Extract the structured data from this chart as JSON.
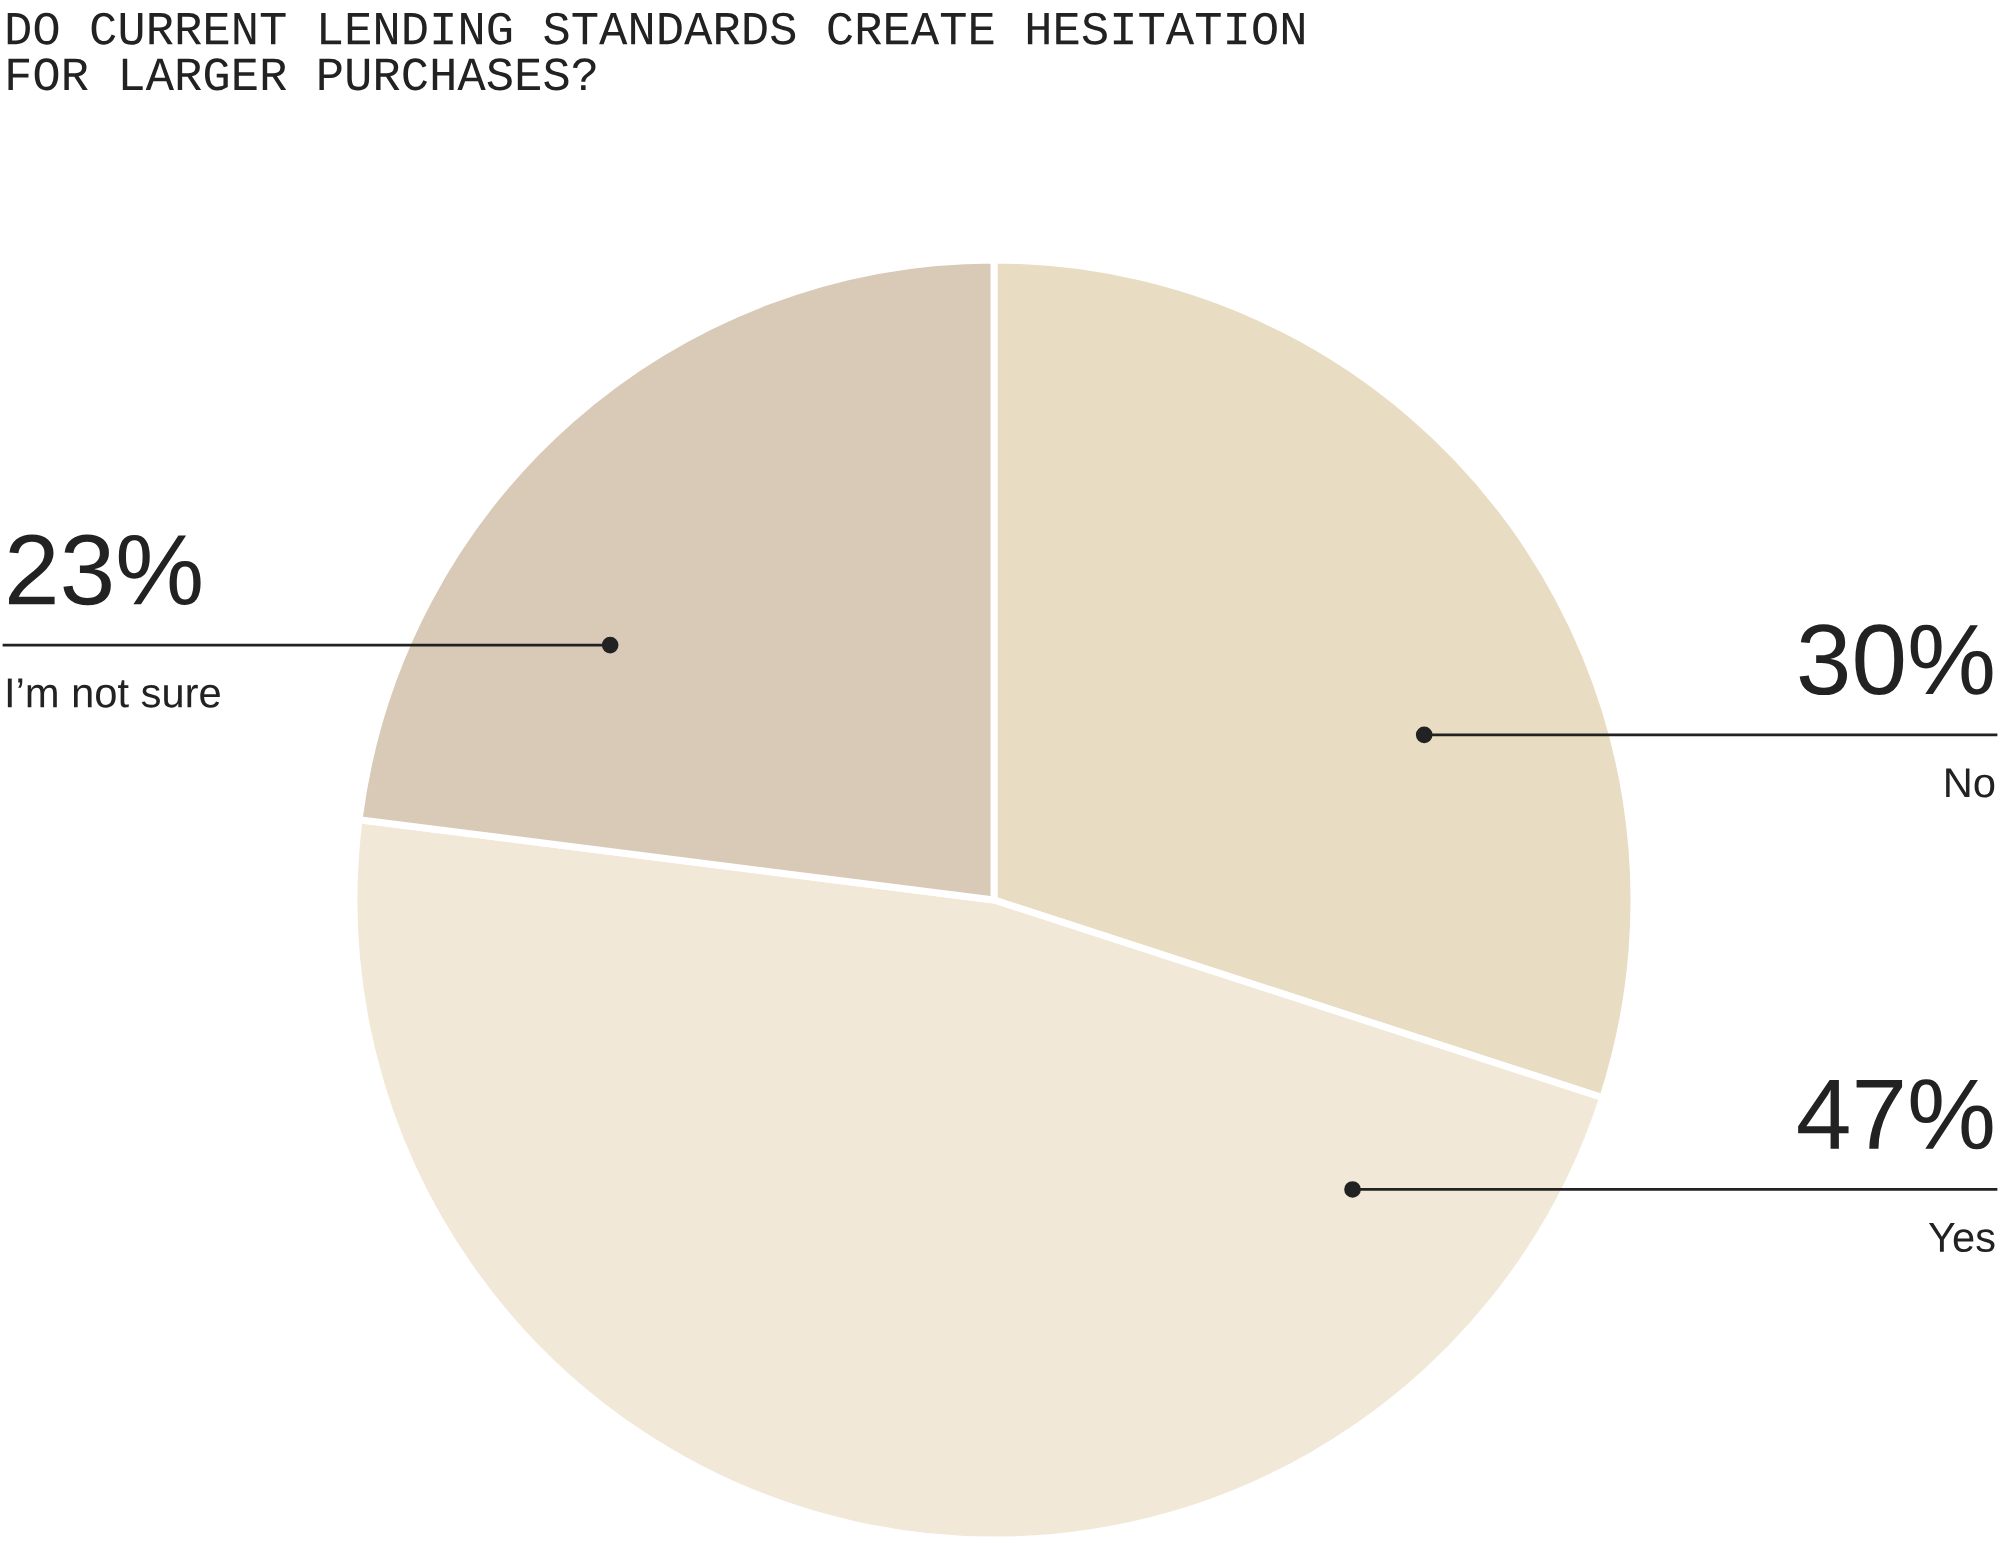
{
  "chart_data": {
    "type": "pie",
    "title": "DO CURRENT LENDING STANDARDS CREATE HESITATION\nFOR LARGER PURCHASES?",
    "categories": [
      "No",
      "Yes",
      "I’m not sure"
    ],
    "values": [
      30,
      47,
      23
    ],
    "colors": [
      "#e8dcc3",
      "#f2e8d8",
      "#d9cab7"
    ],
    "value_labels": [
      "30%",
      "47%",
      "23%"
    ]
  }
}
